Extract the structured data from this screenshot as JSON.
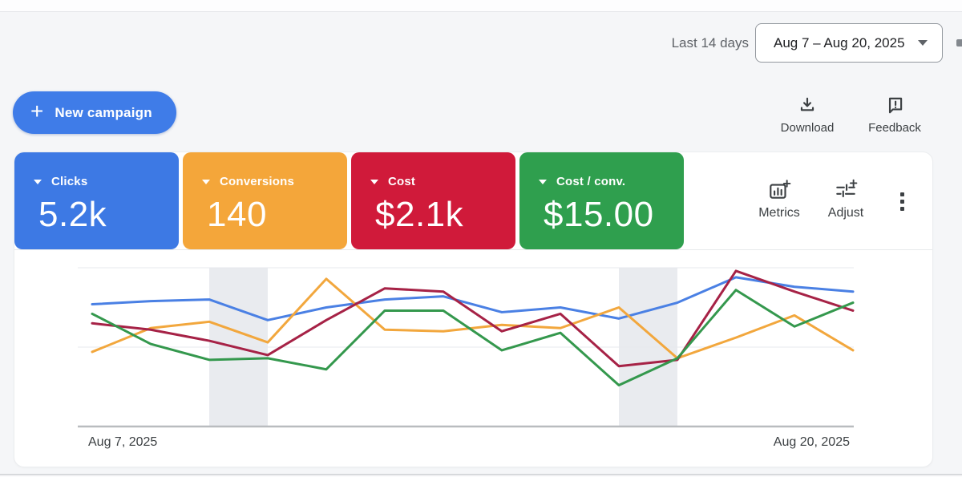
{
  "header": {
    "range_preset_label": "Last 14 days",
    "date_range_value": "Aug 7 – Aug 20, 2025"
  },
  "toolbar": {
    "new_campaign_label": "New campaign",
    "download_label": "Download",
    "feedback_label": "Feedback"
  },
  "scorecards": [
    {
      "label": "Clicks",
      "value": "5.2k",
      "color": "#3d79e4"
    },
    {
      "label": "Conversions",
      "value": "140",
      "color": "#f4a63a"
    },
    {
      "label": "Cost",
      "value": "$2.1k",
      "color": "#d01a3a"
    },
    {
      "label": "Cost / conv.",
      "value": "$15.00",
      "color": "#2f9f4e"
    }
  ],
  "chart_tools": {
    "metrics_label": "Metrics",
    "adjust_label": "Adjust"
  },
  "icons": [
    "plus-icon",
    "caret-down-icon",
    "download-icon",
    "feedback-icon",
    "metrics-add-icon",
    "adjust-sliders-icon",
    "kebab-menu-icon"
  ],
  "chart_data": {
    "type": "line",
    "title": "",
    "x": [
      "Aug 7",
      "Aug 8",
      "Aug 9",
      "Aug 10",
      "Aug 11",
      "Aug 12",
      "Aug 13",
      "Aug 14",
      "Aug 15",
      "Aug 16",
      "Aug 17",
      "Aug 18",
      "Aug 19",
      "Aug 20"
    ],
    "x_axis_labels_shown": [
      "Aug 7, 2025",
      "Aug 20, 2025"
    ],
    "y_axis": "unlabeled; y_norm = estimated % of plot height above baseline (gridlines at 50 and 100)",
    "ylim": [
      0,
      100
    ],
    "gridlines_y_norm": [
      100,
      50
    ],
    "legend_position": "none",
    "series": [
      {
        "name": "Clicks",
        "color": "#4a80e4",
        "y_norm": [
          77,
          79,
          80,
          67,
          75,
          80,
          82,
          72,
          75,
          68,
          78,
          94,
          88,
          85
        ]
      },
      {
        "name": "Conversions",
        "color": "#f2a73d",
        "y_norm": [
          47,
          62,
          66,
          53,
          93,
          61,
          60,
          64,
          62,
          75,
          43,
          56,
          70,
          48
        ]
      },
      {
        "name": "Cost",
        "color": "#a62246",
        "y_norm": [
          65,
          61,
          54,
          45,
          67,
          87,
          85,
          60,
          71,
          38,
          42,
          98,
          85,
          73
        ]
      },
      {
        "name": "Cost / conv.",
        "color": "#34984d",
        "y_norm": [
          71,
          52,
          42,
          43,
          36,
          73,
          73,
          48,
          59,
          26,
          43,
          86,
          63,
          78
        ]
      }
    ],
    "weekend_bands_point_indices": [
      [
        2,
        3
      ],
      [
        9,
        10
      ]
    ],
    "band_color": "#e9ebef",
    "axis_line_color": "#b9bcbf",
    "gridline_color": "#e7e9ec"
  }
}
